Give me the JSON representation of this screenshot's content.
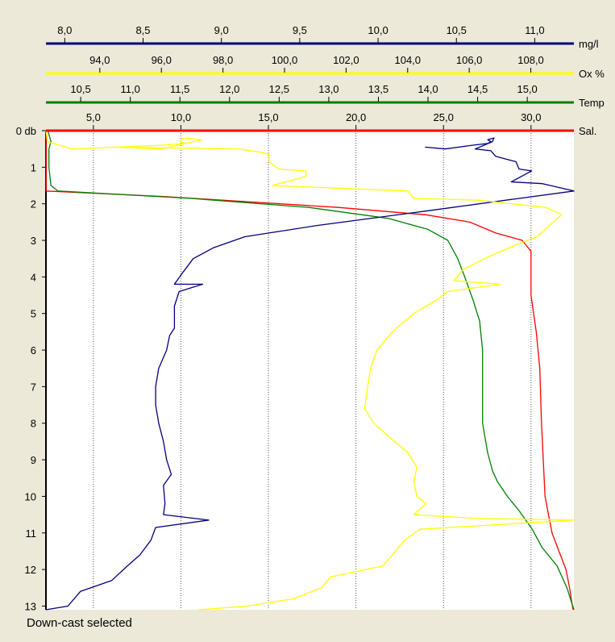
{
  "status_text": "Down-cast selected",
  "chart_data": {
    "type": "line",
    "y_axis": {
      "label": "db",
      "range": [
        0,
        13.1
      ],
      "ticks": [
        0,
        1,
        2,
        3,
        4,
        5,
        6,
        7,
        8,
        9,
        10,
        11,
        12,
        13
      ],
      "tick_labels": [
        "0",
        "1",
        "2",
        "3",
        "4",
        "5",
        "6",
        "7",
        "8",
        "9",
        "10",
        "11",
        "12",
        "13"
      ],
      "inverted": true
    },
    "x_axes": [
      {
        "id": "mgl",
        "unit_label": "mg/l",
        "color": "#00007f",
        "range": [
          7.88,
          11.25
        ],
        "ticks": [
          8.0,
          8.5,
          9.0,
          9.5,
          10.0,
          10.5,
          11.0
        ],
        "tick_labels": [
          "8,0",
          "8,5",
          "9,0",
          "9,5",
          "10,0",
          "10,5",
          "11,0"
        ]
      },
      {
        "id": "ox",
        "unit_label": "Ox %",
        "color": "#ffff00",
        "range": [
          92.25,
          109.4
        ],
        "ticks": [
          94,
          96,
          98,
          100,
          102,
          104,
          106,
          108
        ],
        "tick_labels": [
          "94,0",
          "96,0",
          "98,0",
          "100,0",
          "102,0",
          "104,0",
          "106,0",
          "108,0"
        ]
      },
      {
        "id": "temp",
        "unit_label": "Temp",
        "color": "#007f00",
        "range": [
          10.15,
          15.47
        ],
        "ticks": [
          10.5,
          11,
          11.5,
          12,
          12.5,
          13,
          13.5,
          14,
          14.5,
          15
        ],
        "tick_labels": [
          "10,5",
          "11,0",
          "11,5",
          "12,0",
          "12,5",
          "13,0",
          "13,5",
          "14,0",
          "14,5",
          "15,0"
        ]
      },
      {
        "id": "sal",
        "unit_label": "Sal.",
        "color": "#ff0000",
        "range": [
          2.29,
          32.45
        ],
        "ticks": [
          5,
          10,
          15,
          20,
          25,
          30
        ],
        "tick_labels": [
          "5,0",
          "10,0",
          "15,0",
          "20,0",
          "25,0",
          "30,0"
        ]
      }
    ],
    "grid": "vertical dotted at Sal. ticks",
    "series": [
      {
        "axis": "sal",
        "color": "#ff0000",
        "points": [
          [
            2.3,
            0
          ],
          [
            2.3,
            1.65
          ],
          [
            9,
            1.8
          ],
          [
            14,
            1.95
          ],
          [
            19,
            2.1
          ],
          [
            24,
            2.3
          ],
          [
            26.5,
            2.5
          ],
          [
            28,
            2.8
          ],
          [
            29.5,
            3.0
          ],
          [
            30,
            3.3
          ],
          [
            30,
            3.8
          ],
          [
            30,
            4.5
          ],
          [
            30.3,
            5.5
          ],
          [
            30.5,
            6.5
          ],
          [
            30.6,
            8
          ],
          [
            30.7,
            9
          ],
          [
            30.8,
            10
          ],
          [
            31,
            10.5
          ],
          [
            31.2,
            11
          ],
          [
            31.6,
            11.5
          ],
          [
            32,
            12
          ],
          [
            32.2,
            12.5
          ],
          [
            32.4,
            13.1
          ]
        ]
      },
      {
        "axis": "temp",
        "color": "#007f00",
        "points": [
          [
            10.17,
            0
          ],
          [
            10.2,
            0.3
          ],
          [
            10.18,
            0.5
          ],
          [
            10.18,
            1.0
          ],
          [
            10.2,
            1.5
          ],
          [
            10.27,
            1.65
          ],
          [
            11.6,
            1.85
          ],
          [
            12.8,
            2.1
          ],
          [
            13.6,
            2.4
          ],
          [
            14.0,
            2.7
          ],
          [
            14.2,
            3.0
          ],
          [
            14.3,
            3.5
          ],
          [
            14.37,
            4.0
          ],
          [
            14.45,
            4.6
          ],
          [
            14.52,
            5.2
          ],
          [
            14.55,
            6.0
          ],
          [
            14.55,
            7.0
          ],
          [
            14.55,
            8.0
          ],
          [
            14.6,
            8.8
          ],
          [
            14.65,
            9.3
          ],
          [
            14.7,
            9.6
          ],
          [
            14.8,
            10.0
          ],
          [
            14.92,
            10.4
          ],
          [
            15.05,
            10.9
          ],
          [
            15.15,
            11.4
          ],
          [
            15.3,
            11.9
          ],
          [
            15.4,
            12.5
          ],
          [
            15.47,
            13.1
          ]
        ]
      },
      {
        "axis": "mgl",
        "color": "#00007f",
        "points": [
          [
            10.3,
            0.45
          ],
          [
            10.43,
            0.5
          ],
          [
            10.6,
            0.4
          ],
          [
            10.7,
            0.35
          ],
          [
            10.72,
            0.3
          ],
          [
            10.7,
            0.25
          ],
          [
            10.74,
            0.2
          ],
          [
            10.73,
            0.3
          ],
          [
            10.62,
            0.5
          ],
          [
            10.72,
            0.55
          ],
          [
            10.75,
            0.7
          ],
          [
            10.88,
            0.85
          ],
          [
            10.9,
            1.05
          ],
          [
            10.98,
            1.1
          ],
          [
            10.85,
            1.4
          ],
          [
            11.05,
            1.45
          ],
          [
            11.25,
            1.65
          ],
          [
            10.3,
            2.2
          ],
          [
            9.6,
            2.6
          ],
          [
            9.15,
            2.9
          ],
          [
            8.95,
            3.2
          ],
          [
            8.82,
            3.5
          ],
          [
            8.75,
            3.9
          ],
          [
            8.7,
            4.2
          ],
          [
            8.88,
            4.2
          ],
          [
            8.73,
            4.4
          ],
          [
            8.7,
            4.8
          ],
          [
            8.7,
            5.4
          ],
          [
            8.67,
            5.6
          ],
          [
            8.65,
            6.0
          ],
          [
            8.6,
            6.5
          ],
          [
            8.58,
            7.0
          ],
          [
            8.58,
            7.5
          ],
          [
            8.6,
            8.0
          ],
          [
            8.63,
            8.5
          ],
          [
            8.65,
            9.0
          ],
          [
            8.68,
            9.4
          ],
          [
            8.63,
            9.7
          ],
          [
            8.64,
            10.2
          ],
          [
            8.63,
            10.5
          ],
          [
            8.92,
            10.65
          ],
          [
            8.58,
            10.85
          ],
          [
            8.55,
            11.2
          ],
          [
            8.48,
            11.6
          ],
          [
            8.4,
            11.9
          ],
          [
            8.3,
            12.3
          ],
          [
            8.1,
            12.6
          ],
          [
            8.02,
            13.0
          ],
          [
            7.88,
            13.1
          ]
        ]
      },
      {
        "axis": "ox",
        "color": "#ffff00",
        "points": [
          [
            92.25,
            0
          ],
          [
            92.3,
            0.3
          ],
          [
            93.1,
            0.5
          ],
          [
            96.0,
            0.4
          ],
          [
            96.8,
            0.35
          ],
          [
            96.6,
            0.3
          ],
          [
            96.7,
            0.2
          ],
          [
            97.3,
            0.25
          ],
          [
            96.0,
            0.5
          ],
          [
            94.5,
            0.45
          ],
          [
            98.5,
            0.5
          ],
          [
            99.3,
            0.6
          ],
          [
            99.5,
            0.65
          ],
          [
            99.5,
            0.85
          ],
          [
            99.8,
            1.05
          ],
          [
            100.7,
            1.1
          ],
          [
            100.7,
            1.25
          ],
          [
            99.6,
            1.5
          ],
          [
            104.0,
            1.65
          ],
          [
            104.2,
            1.85
          ],
          [
            106.3,
            1.9
          ],
          [
            108.5,
            2.1
          ],
          [
            109.0,
            2.3
          ],
          [
            108.2,
            2.9
          ],
          [
            107.3,
            3.2
          ],
          [
            106.5,
            3.5
          ],
          [
            105.8,
            3.8
          ],
          [
            105.5,
            4.1
          ],
          [
            107.0,
            4.2
          ],
          [
            105.3,
            4.4
          ],
          [
            105.0,
            4.6
          ],
          [
            104.2,
            5.0
          ],
          [
            103.5,
            5.5
          ],
          [
            103.0,
            6.0
          ],
          [
            102.8,
            6.5
          ],
          [
            102.7,
            7.0
          ],
          [
            102.6,
            7.6
          ],
          [
            102.9,
            8.0
          ],
          [
            103.3,
            8.3
          ],
          [
            104.0,
            8.8
          ],
          [
            104.3,
            9.2
          ],
          [
            104.2,
            9.6
          ],
          [
            104.3,
            10.0
          ],
          [
            104.6,
            10.2
          ],
          [
            104.2,
            10.5
          ],
          [
            106.2,
            10.6
          ],
          [
            109.4,
            10.65
          ],
          [
            104.4,
            10.9
          ],
          [
            103.9,
            11.2
          ],
          [
            103.6,
            11.5
          ],
          [
            103.2,
            11.9
          ],
          [
            101.5,
            12.2
          ],
          [
            101.2,
            12.5
          ],
          [
            100.3,
            12.8
          ],
          [
            98.8,
            13.0
          ],
          [
            97.2,
            13.1
          ]
        ]
      }
    ]
  }
}
